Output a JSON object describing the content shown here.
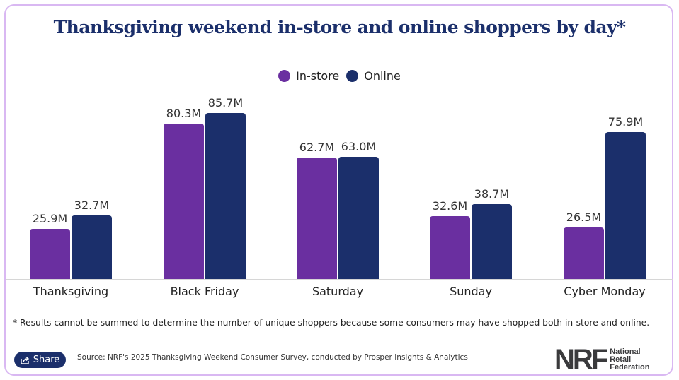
{
  "title": "Thanksgiving weekend in-store and online shoppers by day*",
  "legend": [
    {
      "label": "In-store",
      "color": "#6a2fa0"
    },
    {
      "label": "Online",
      "color": "#1b2f6b"
    }
  ],
  "footnote": "* Results cannot be summed to determine the number of unique shoppers because some consumers may have shopped both in-store and online.",
  "share_label": "Share",
  "source": "Source: NRF's 2025 Thanksgiving Weekend Consumer Survey, conducted by Prosper Insights & Analytics",
  "logo": {
    "mark": "NRF",
    "line1": "National",
    "line2": "Retail",
    "line3": "Federation"
  },
  "chart_data": {
    "type": "bar",
    "title": "Thanksgiving weekend in-store and online shoppers by day*",
    "categories": [
      "Thanksgiving",
      "Black Friday",
      "Saturday",
      "Sunday",
      "Cyber Monday"
    ],
    "series": [
      {
        "name": "In-store",
        "color": "#6a2fa0",
        "values": [
          25.9,
          80.3,
          62.7,
          32.6,
          26.5
        ],
        "labels": [
          "25.9M",
          "80.3M",
          "62.7M",
          "32.6M",
          "26.5M"
        ]
      },
      {
        "name": "Online",
        "color": "#1b2f6b",
        "values": [
          32.7,
          85.7,
          63.0,
          38.7,
          75.9
        ],
        "labels": [
          "32.7M",
          "85.7M",
          "63.0M",
          "38.7M",
          "75.9M"
        ]
      }
    ],
    "unit": "millions of shoppers",
    "xlabel": "",
    "ylabel": "",
    "grid": false,
    "legend_position": "top"
  }
}
